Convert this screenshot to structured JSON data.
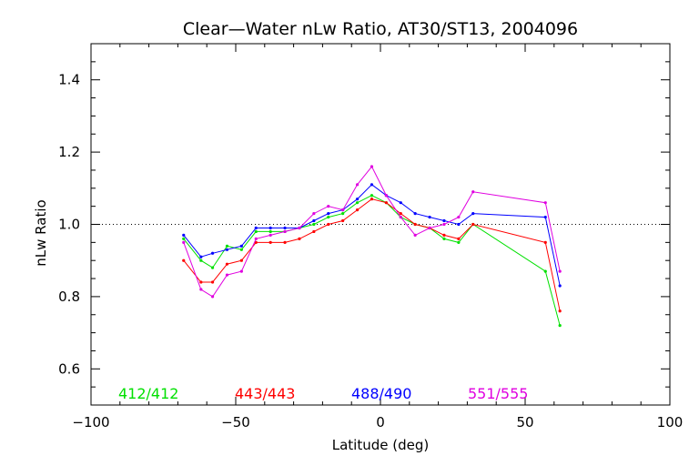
{
  "chart_data": {
    "type": "line",
    "title": "Clear—Water nLw Ratio, AT30/ST13, 2004096",
    "xlabel": "Latitude (deg)",
    "ylabel": "nLw Ratio",
    "xlim": [
      -100,
      100
    ],
    "ylim": [
      0.5,
      1.5
    ],
    "xticks": [
      -100,
      -50,
      0,
      50,
      100
    ],
    "xtick_labels": [
      "−100",
      "−50",
      "0",
      "50",
      "100"
    ],
    "yticks": [
      0.6,
      0.8,
      1.0,
      1.2,
      1.4
    ],
    "ytick_labels": [
      "0.6",
      "0.8",
      "1.0",
      "1.2",
      "1.4"
    ],
    "reference_line": 1.0,
    "grid": false,
    "legend_position": "bottom-inside",
    "series": [
      {
        "name": "412/412",
        "color": "#00e000",
        "x": [
          -68,
          -62,
          -58,
          -53,
          -48,
          -43,
          -38,
          -33,
          -28,
          -23,
          -18,
          -13,
          -8,
          -3,
          2,
          7,
          12,
          17,
          22,
          27,
          32,
          57,
          62
        ],
        "y": [
          0.96,
          0.9,
          0.88,
          0.94,
          0.93,
          0.98,
          0.98,
          0.98,
          0.99,
          1.0,
          1.02,
          1.03,
          1.06,
          1.08,
          1.06,
          1.02,
          1.0,
          0.99,
          0.96,
          0.95,
          1.0,
          0.87,
          0.72
        ]
      },
      {
        "name": "443/443",
        "color": "#ff0000",
        "x": [
          -68,
          -62,
          -58,
          -53,
          -48,
          -43,
          -38,
          -33,
          -28,
          -23,
          -18,
          -13,
          -8,
          -3,
          2,
          7,
          12,
          17,
          22,
          27,
          32,
          57,
          62
        ],
        "y": [
          0.9,
          0.84,
          0.84,
          0.89,
          0.9,
          0.95,
          0.95,
          0.95,
          0.96,
          0.98,
          1.0,
          1.01,
          1.04,
          1.07,
          1.06,
          1.03,
          1.0,
          0.99,
          0.97,
          0.96,
          1.0,
          0.95,
          0.76
        ]
      },
      {
        "name": "488/490",
        "color": "#0000ff",
        "x": [
          -68,
          -62,
          -58,
          -53,
          -48,
          -43,
          -38,
          -33,
          -28,
          -23,
          -18,
          -13,
          -8,
          -3,
          2,
          7,
          12,
          17,
          22,
          27,
          32,
          57,
          62
        ],
        "y": [
          0.97,
          0.91,
          0.92,
          0.93,
          0.94,
          0.99,
          0.99,
          0.99,
          0.99,
          1.01,
          1.03,
          1.04,
          1.07,
          1.11,
          1.08,
          1.06,
          1.03,
          1.02,
          1.01,
          1.0,
          1.03,
          1.02,
          0.83
        ]
      },
      {
        "name": "551/555",
        "color": "#e000e0",
        "x": [
          -68,
          -62,
          -58,
          -53,
          -48,
          -43,
          -38,
          -33,
          -28,
          -23,
          -18,
          -13,
          -8,
          -3,
          2,
          7,
          12,
          17,
          22,
          27,
          32,
          57,
          62
        ],
        "y": [
          0.95,
          0.82,
          0.8,
          0.86,
          0.87,
          0.96,
          0.97,
          0.98,
          0.99,
          1.03,
          1.05,
          1.04,
          1.11,
          1.16,
          1.08,
          1.02,
          0.97,
          0.99,
          1.0,
          1.02,
          1.09,
          1.06,
          0.87
        ]
      }
    ]
  }
}
